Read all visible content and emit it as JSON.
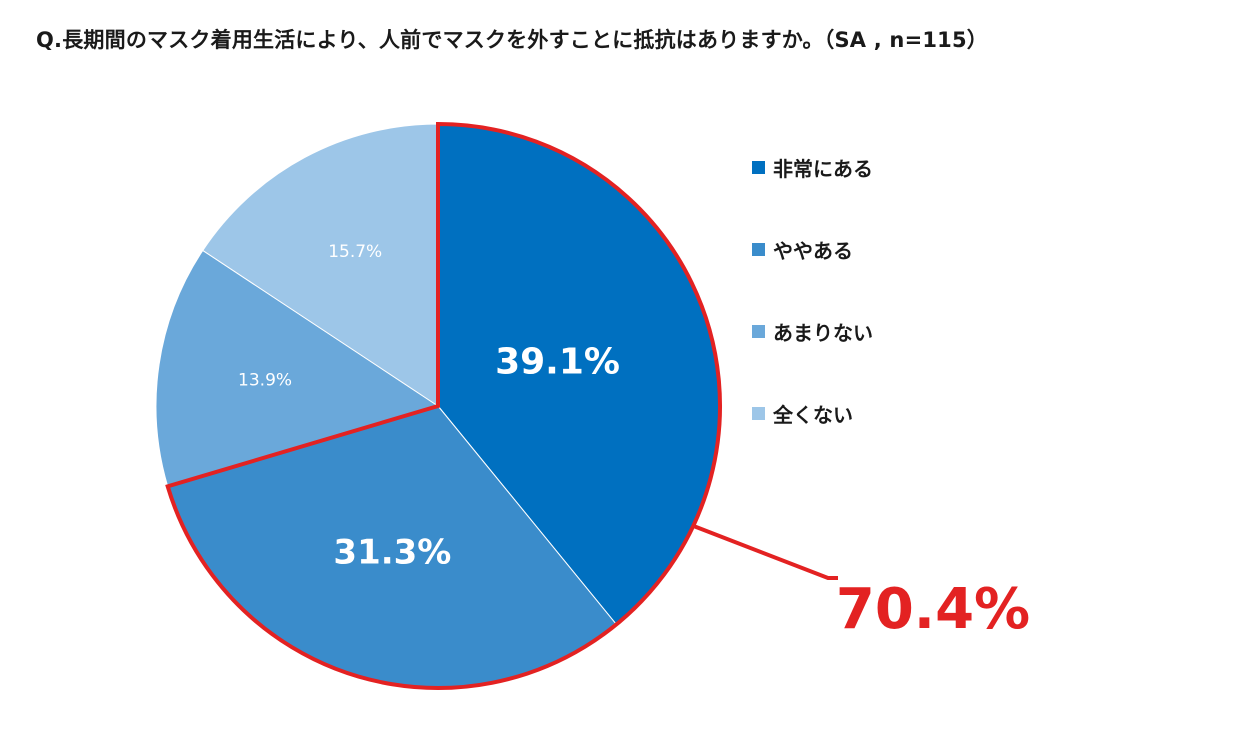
{
  "chart_data": {
    "type": "pie",
    "title": "Q.長期間のマスク着用生活により、人前でマスクを外すことに抵抗はありますか。（SA , n=115）",
    "categories": [
      "非常にある",
      "ややある",
      "あまりない",
      "全くない"
    ],
    "values": [
      39.1,
      31.3,
      13.9,
      15.7
    ],
    "value_labels": [
      "39.1%",
      "31.3%",
      "13.9%",
      "15.7%"
    ],
    "colors": [
      "#0070c0",
      "#3a8ccb",
      "#6aa8da",
      "#9dc6e8"
    ],
    "legend_position": "right",
    "highlight": {
      "categories": [
        "非常にある",
        "ややある"
      ],
      "label": "70.4%",
      "color": "#e32222"
    }
  }
}
